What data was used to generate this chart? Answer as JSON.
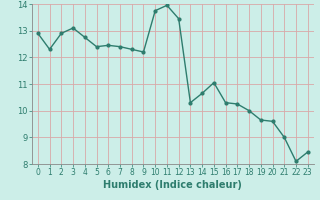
{
  "x": [
    0,
    1,
    2,
    3,
    4,
    5,
    6,
    7,
    8,
    9,
    10,
    11,
    12,
    13,
    14,
    15,
    16,
    17,
    18,
    19,
    20,
    21,
    22,
    23
  ],
  "y": [
    12.9,
    12.3,
    12.9,
    13.1,
    12.75,
    12.4,
    12.45,
    12.4,
    12.3,
    12.2,
    13.75,
    13.95,
    13.45,
    10.3,
    10.65,
    11.05,
    10.3,
    10.25,
    10.0,
    9.65,
    9.6,
    9.0,
    8.1,
    8.45
  ],
  "line_color": "#2e7d6e",
  "marker": "o",
  "marker_size": 2.0,
  "line_width": 1.0,
  "background_color": "#cceee8",
  "grid_color": "#d9a8a8",
  "xlabel": "Humidex (Indice chaleur)",
  "xlabel_fontsize": 7,
  "tick_fontsize": 6,
  "ylim": [
    8,
    14
  ],
  "xlim": [
    -0.5,
    23.5
  ],
  "yticks": [
    8,
    9,
    10,
    11,
    12,
    13,
    14
  ],
  "xticks": [
    0,
    1,
    2,
    3,
    4,
    5,
    6,
    7,
    8,
    9,
    10,
    11,
    12,
    13,
    14,
    15,
    16,
    17,
    18,
    19,
    20,
    21,
    22,
    23
  ]
}
